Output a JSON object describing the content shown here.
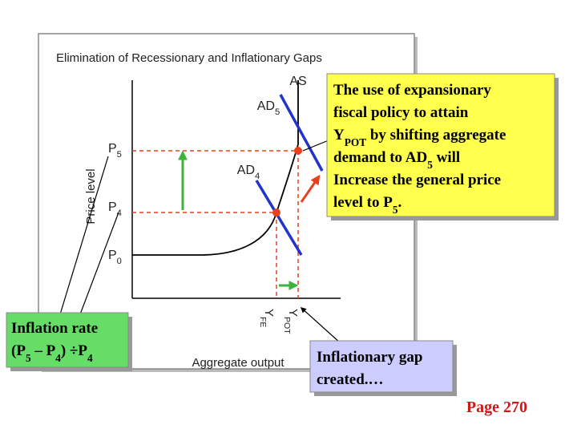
{
  "chart": {
    "title": "Elimination of Recessionary and Inflationary Gaps",
    "y_axis_label": "Price level",
    "x_axis_label": "Aggregate output",
    "curve_labels": [
      [
        {
          "text": "AS"
        }
      ],
      [
        {
          "text": "AD"
        },
        {
          "text": "5",
          "sub": true
        }
      ],
      [
        {
          "text": "AD"
        },
        {
          "text": "4",
          "sub": true
        }
      ]
    ],
    "price_labels": [
      [
        {
          "text": "P"
        },
        {
          "text": "5",
          "sub": true
        }
      ],
      [
        {
          "text": "P"
        },
        {
          "text": "4",
          "sub": true
        }
      ],
      [
        {
          "text": "P"
        },
        {
          "text": "0",
          "sub": true
        }
      ]
    ],
    "output_labels": [
      [
        {
          "text": "Y"
        },
        {
          "text": "FE",
          "sub": true
        }
      ],
      [
        {
          "text": "Y"
        },
        {
          "text": "POT",
          "sub": true
        }
      ]
    ]
  },
  "callouts": {
    "fiscal_policy": {
      "lines": [
        [
          {
            "text": "The use of expansionary"
          }
        ],
        [
          {
            "text": "fiscal policy to attain"
          }
        ],
        [
          {
            "text": "Y"
          },
          {
            "text": "POT",
            "sub": true
          },
          {
            "text": " by shifting aggregate"
          }
        ],
        [
          {
            "text": "demand to AD"
          },
          {
            "text": "5",
            "sub": true
          },
          {
            "text": " will"
          }
        ],
        [
          {
            "text": "Increase the general price"
          }
        ],
        [
          {
            "text": "level to P"
          },
          {
            "text": "5",
            "sub": true
          },
          {
            "text": "."
          }
        ]
      ]
    },
    "inflation_rate": {
      "lines": [
        [
          {
            "text": "Inflation rate"
          }
        ],
        [
          {
            "text": "(P"
          },
          {
            "text": "5",
            "sub": true
          },
          {
            "text": " – P"
          },
          {
            "text": "4",
            "sub": true
          },
          {
            "text": ") ÷P"
          },
          {
            "text": "4",
            "sub": true
          }
        ]
      ]
    },
    "inflationary_gap": {
      "lines": [
        [
          {
            "text": "Inflationary gap"
          }
        ],
        [
          {
            "text": "created.…"
          }
        ]
      ]
    }
  },
  "footer": {
    "page": "Page 270"
  }
}
